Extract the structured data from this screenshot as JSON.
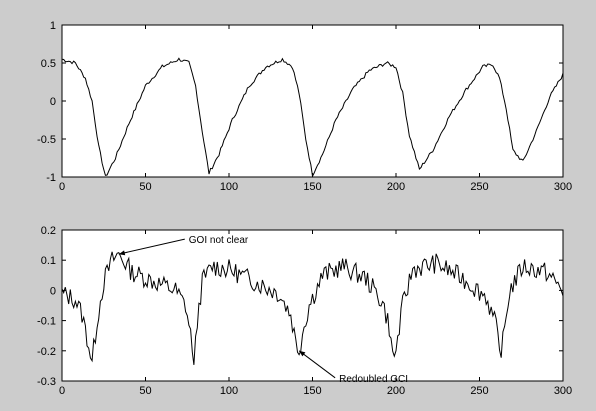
{
  "figure": {
    "background_color": "#cccccc",
    "plot_background_color": "#ffffff",
    "line_color": "#000000"
  },
  "chart_data": [
    {
      "type": "line",
      "title": "",
      "xlabel": "",
      "ylabel": "",
      "xlim": [
        0,
        300
      ],
      "ylim": [
        -1,
        1
      ],
      "grid": false,
      "x_ticks": [
        0,
        50,
        100,
        150,
        200,
        250,
        300
      ],
      "y_ticks": [
        -1,
        -0.5,
        0,
        0.5,
        1
      ],
      "x_tick_labels": [
        "0",
        "50",
        "100",
        "150",
        "200",
        "250",
        "300"
      ],
      "y_tick_labels": [
        "-1",
        "-0.5",
        "0",
        "0.5",
        "1"
      ],
      "series": [
        {
          "x": [
            0,
            8,
            14,
            18,
            22,
            26,
            32,
            40,
            50,
            60,
            70,
            76,
            80,
            84,
            88,
            94,
            102,
            112,
            122,
            132,
            138,
            142,
            146,
            150,
            156,
            164,
            174,
            184,
            194,
            200,
            204,
            208,
            214,
            222,
            232,
            242,
            252,
            258,
            262,
            266,
            270,
            276,
            284,
            292,
            300
          ],
          "y": [
            0.55,
            0.5,
            0.3,
            0.0,
            -0.6,
            -1.0,
            -0.75,
            -0.3,
            0.2,
            0.45,
            0.55,
            0.5,
            0.2,
            -0.4,
            -0.95,
            -0.7,
            -0.25,
            0.2,
            0.45,
            0.55,
            0.45,
            0.1,
            -0.5,
            -0.97,
            -0.7,
            -0.25,
            0.15,
            0.4,
            0.5,
            0.45,
            0.1,
            -0.45,
            -0.9,
            -0.65,
            -0.2,
            0.15,
            0.45,
            0.48,
            0.3,
            -0.1,
            -0.65,
            -0.8,
            -0.4,
            0.05,
            0.35
          ]
        }
      ]
    },
    {
      "type": "line",
      "title": "",
      "xlabel": "",
      "ylabel": "",
      "xlim": [
        0,
        300
      ],
      "ylim": [
        -0.3,
        0.2
      ],
      "grid": false,
      "x_ticks": [
        0,
        50,
        100,
        150,
        200,
        250,
        300
      ],
      "y_ticks": [
        -0.3,
        -0.2,
        -0.1,
        0,
        0.1,
        0.2
      ],
      "x_tick_labels": [
        "0",
        "50",
        "100",
        "150",
        "200",
        "250",
        "300"
      ],
      "y_tick_labels": [
        "-0.3",
        "-0.2",
        "-0.1",
        "0",
        "0.1",
        "0.2"
      ],
      "series": [
        {
          "x": [
            0,
            8,
            12,
            16,
            18,
            21,
            25,
            30,
            34,
            42,
            55,
            68,
            74,
            78,
            79,
            81,
            84,
            90,
            100,
            115,
            130,
            137,
            140,
            142,
            144,
            148,
            156,
            168,
            182,
            192,
            196,
            198,
            200,
            204,
            210,
            224,
            240,
            254,
            260,
            262,
            264,
            268,
            276,
            290,
            300
          ],
          "y": [
            -0.01,
            -0.03,
            -0.08,
            -0.18,
            -0.24,
            -0.1,
            0.03,
            0.1,
            0.12,
            0.06,
            0.03,
            0.0,
            -0.05,
            -0.18,
            -0.26,
            -0.1,
            0.03,
            0.08,
            0.07,
            0.03,
            -0.01,
            -0.08,
            -0.17,
            -0.2,
            -0.14,
            -0.05,
            0.05,
            0.08,
            0.04,
            -0.04,
            -0.12,
            -0.22,
            -0.2,
            -0.05,
            0.07,
            0.09,
            0.04,
            -0.02,
            -0.12,
            -0.21,
            -0.17,
            0.0,
            0.08,
            0.06,
            0.0
          ]
        }
      ],
      "annotations": [
        {
          "text": "GOI not clear",
          "point": [
            34,
            0.12
          ]
        },
        {
          "text": "Redoubled GCI",
          "point": [
            142,
            -0.2
          ]
        }
      ]
    }
  ]
}
